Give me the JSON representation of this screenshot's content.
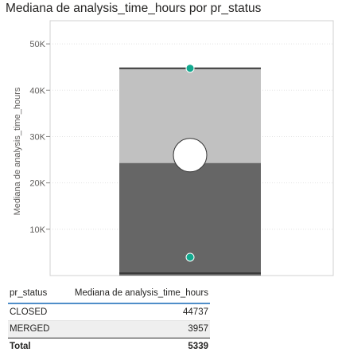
{
  "visual": {
    "title": "Mediana de analysis_time_hours por pr_status"
  },
  "chart_data": {
    "type": "bar",
    "title": "Mediana de analysis_time_hours por pr_status",
    "xlabel": "",
    "ylabel": "Mediana de analysis_time_hours",
    "ylim": [
      0,
      55000
    ],
    "yticks": [
      {
        "value": 10000,
        "label": "10K"
      },
      {
        "value": 20000,
        "label": "20K"
      },
      {
        "value": 30000,
        "label": "30K"
      },
      {
        "value": 40000,
        "label": "40K"
      },
      {
        "value": 50000,
        "label": "50K"
      }
    ],
    "grid": true,
    "stack_bands": [
      {
        "from": 0,
        "to": 24300,
        "color": "#666666"
      },
      {
        "from": 24300,
        "to": 44737,
        "color": "#c1c1c1"
      }
    ],
    "points": [
      {
        "category": "CLOSED",
        "value": 44737,
        "color": "#13a98f"
      },
      {
        "category": "MERGED",
        "value": 3957,
        "color": "#13a98f"
      }
    ],
    "median_marker": {
      "value": 26000,
      "color": "#ffffff"
    }
  },
  "table": {
    "headers": [
      "pr_status",
      "Mediana de analysis_time_hours"
    ],
    "rows": [
      {
        "status": "CLOSED",
        "value": "44737"
      },
      {
        "status": "MERGED",
        "value": "3957"
      }
    ],
    "total": {
      "label": "Total",
      "value": "5339"
    }
  }
}
